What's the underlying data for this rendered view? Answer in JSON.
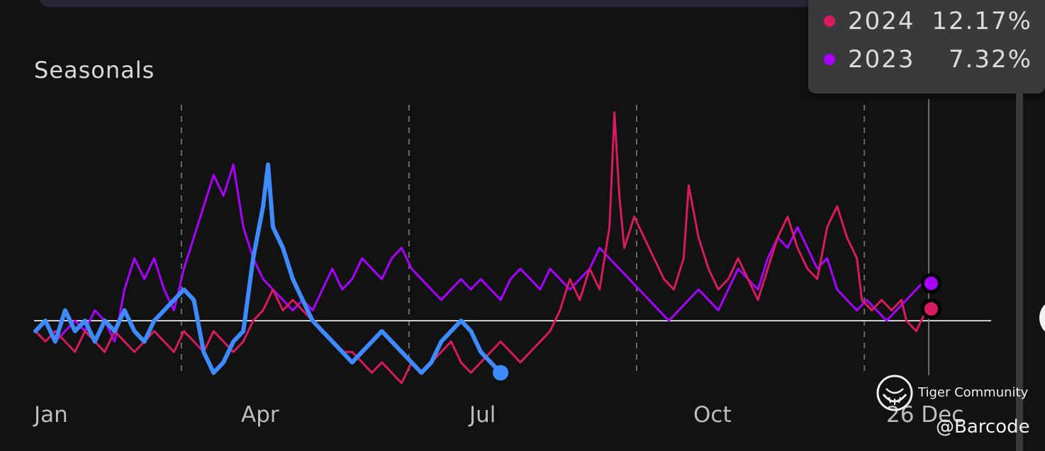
{
  "chart_data": {
    "type": "line",
    "title": "Seasonals",
    "x_axis_labels": [
      "Jan",
      "Apr",
      "Jul",
      "Oct",
      "26 Dec"
    ],
    "baseline": 0,
    "series": [
      {
        "name": "2024",
        "color": "#d81b60",
        "value_label": "12.17%",
        "points": [
          [
            0,
            -1
          ],
          [
            4,
            -2
          ],
          [
            8,
            -1
          ],
          [
            12,
            -2
          ],
          [
            16,
            -3
          ],
          [
            20,
            -1
          ],
          [
            24,
            -2
          ],
          [
            28,
            -3
          ],
          [
            32,
            -1
          ],
          [
            36,
            -2
          ],
          [
            40,
            -3
          ],
          [
            44,
            -2
          ],
          [
            48,
            -1
          ],
          [
            52,
            -2
          ],
          [
            56,
            -3
          ],
          [
            60,
            -1
          ],
          [
            64,
            -2
          ],
          [
            68,
            -3
          ],
          [
            72,
            -1
          ],
          [
            76,
            -2
          ],
          [
            80,
            -3
          ],
          [
            84,
            -2
          ],
          [
            88,
            0
          ],
          [
            92,
            1
          ],
          [
            96,
            3
          ],
          [
            100,
            1
          ],
          [
            104,
            2
          ],
          [
            108,
            1
          ],
          [
            112,
            0
          ],
          [
            116,
            -1
          ],
          [
            120,
            -2
          ],
          [
            124,
            -3
          ],
          [
            128,
            -3
          ],
          [
            132,
            -4
          ],
          [
            136,
            -5
          ],
          [
            140,
            -4
          ],
          [
            144,
            -5
          ],
          [
            148,
            -6
          ],
          [
            152,
            -4
          ],
          [
            156,
            -5
          ],
          [
            160,
            -4
          ],
          [
            164,
            -3
          ],
          [
            168,
            -2
          ],
          [
            172,
            -4
          ],
          [
            176,
            -5
          ],
          [
            180,
            -4
          ],
          [
            184,
            -3
          ],
          [
            188,
            -2
          ],
          [
            192,
            -3
          ],
          [
            196,
            -4
          ],
          [
            200,
            -3
          ],
          [
            204,
            -2
          ],
          [
            208,
            -1
          ],
          [
            212,
            1
          ],
          [
            216,
            4
          ],
          [
            220,
            2
          ],
          [
            224,
            5
          ],
          [
            228,
            3
          ],
          [
            232,
            9
          ],
          [
            234,
            20
          ],
          [
            236,
            12
          ],
          [
            238,
            7
          ],
          [
            242,
            10
          ],
          [
            246,
            8
          ],
          [
            250,
            6
          ],
          [
            254,
            4
          ],
          [
            258,
            3
          ],
          [
            262,
            6
          ],
          [
            264,
            13
          ],
          [
            268,
            8
          ],
          [
            272,
            5
          ],
          [
            276,
            3
          ],
          [
            280,
            4
          ],
          [
            284,
            6
          ],
          [
            288,
            4
          ],
          [
            292,
            2
          ],
          [
            296,
            5
          ],
          [
            300,
            8
          ],
          [
            304,
            10
          ],
          [
            308,
            7
          ],
          [
            312,
            5
          ],
          [
            316,
            4
          ],
          [
            320,
            9
          ],
          [
            324,
            11
          ],
          [
            328,
            8
          ],
          [
            332,
            6
          ],
          [
            334,
            2
          ],
          [
            338,
            1
          ],
          [
            342,
            2
          ],
          [
            346,
            1
          ],
          [
            350,
            2
          ],
          [
            352,
            0
          ],
          [
            356,
            -1
          ],
          [
            360,
            1
          ],
          [
            362,
            1
          ]
        ]
      },
      {
        "name": "2023",
        "color": "#aa00ff",
        "value_label": "7.32%",
        "points": [
          [
            0,
            -1
          ],
          [
            4,
            0
          ],
          [
            8,
            -2
          ],
          [
            12,
            -1
          ],
          [
            16,
            0
          ],
          [
            20,
            -1
          ],
          [
            24,
            1
          ],
          [
            28,
            0
          ],
          [
            32,
            -2
          ],
          [
            36,
            3
          ],
          [
            40,
            6
          ],
          [
            44,
            4
          ],
          [
            48,
            6
          ],
          [
            52,
            3
          ],
          [
            56,
            1
          ],
          [
            60,
            5
          ],
          [
            64,
            8
          ],
          [
            68,
            11
          ],
          [
            72,
            14
          ],
          [
            76,
            12
          ],
          [
            80,
            15
          ],
          [
            84,
            9
          ],
          [
            88,
            6
          ],
          [
            92,
            4
          ],
          [
            96,
            3
          ],
          [
            100,
            2
          ],
          [
            104,
            1
          ],
          [
            108,
            2
          ],
          [
            112,
            1
          ],
          [
            116,
            3
          ],
          [
            120,
            5
          ],
          [
            124,
            3
          ],
          [
            128,
            4
          ],
          [
            132,
            6
          ],
          [
            136,
            5
          ],
          [
            140,
            4
          ],
          [
            144,
            6
          ],
          [
            148,
            7
          ],
          [
            152,
            5
          ],
          [
            156,
            4
          ],
          [
            160,
            3
          ],
          [
            164,
            2
          ],
          [
            168,
            3
          ],
          [
            172,
            4
          ],
          [
            176,
            3
          ],
          [
            180,
            4
          ],
          [
            184,
            3
          ],
          [
            188,
            2
          ],
          [
            192,
            4
          ],
          [
            196,
            5
          ],
          [
            200,
            4
          ],
          [
            204,
            3
          ],
          [
            208,
            5
          ],
          [
            212,
            4
          ],
          [
            216,
            3
          ],
          [
            220,
            4
          ],
          [
            224,
            5
          ],
          [
            228,
            7
          ],
          [
            232,
            6
          ],
          [
            236,
            5
          ],
          [
            240,
            4
          ],
          [
            244,
            3
          ],
          [
            248,
            2
          ],
          [
            252,
            1
          ],
          [
            256,
            0
          ],
          [
            260,
            1
          ],
          [
            264,
            2
          ],
          [
            268,
            3
          ],
          [
            272,
            2
          ],
          [
            276,
            1
          ],
          [
            280,
            3
          ],
          [
            284,
            5
          ],
          [
            288,
            4
          ],
          [
            292,
            3
          ],
          [
            296,
            6
          ],
          [
            300,
            8
          ],
          [
            304,
            7
          ],
          [
            308,
            9
          ],
          [
            312,
            7
          ],
          [
            316,
            5
          ],
          [
            320,
            6
          ],
          [
            324,
            3
          ],
          [
            328,
            2
          ],
          [
            332,
            1
          ],
          [
            336,
            2
          ],
          [
            340,
            1
          ],
          [
            344,
            0
          ],
          [
            348,
            1
          ],
          [
            352,
            2
          ],
          [
            356,
            3
          ],
          [
            360,
            4
          ],
          [
            362,
            4
          ]
        ]
      },
      {
        "name": "",
        "color": "#3d8bff",
        "points": [
          [
            0,
            -1
          ],
          [
            4,
            0
          ],
          [
            8,
            -2
          ],
          [
            12,
            1
          ],
          [
            16,
            -1
          ],
          [
            20,
            0
          ],
          [
            24,
            -2
          ],
          [
            28,
            0
          ],
          [
            32,
            -1
          ],
          [
            36,
            1
          ],
          [
            40,
            -1
          ],
          [
            44,
            -2
          ],
          [
            48,
            0
          ],
          [
            52,
            1
          ],
          [
            56,
            2
          ],
          [
            60,
            3
          ],
          [
            64,
            2
          ],
          [
            68,
            -3
          ],
          [
            72,
            -5
          ],
          [
            76,
            -4
          ],
          [
            80,
            -2
          ],
          [
            84,
            -1
          ],
          [
            88,
            6
          ],
          [
            92,
            11
          ],
          [
            94,
            15
          ],
          [
            96,
            9
          ],
          [
            100,
            7
          ],
          [
            104,
            4
          ],
          [
            108,
            2
          ],
          [
            112,
            0
          ],
          [
            116,
            -1
          ],
          [
            120,
            -2
          ],
          [
            124,
            -3
          ],
          [
            128,
            -4
          ],
          [
            132,
            -3
          ],
          [
            136,
            -2
          ],
          [
            140,
            -1
          ],
          [
            144,
            -2
          ],
          [
            148,
            -3
          ],
          [
            152,
            -4
          ],
          [
            156,
            -5
          ],
          [
            160,
            -4
          ],
          [
            164,
            -2
          ],
          [
            168,
            -1
          ],
          [
            172,
            0
          ],
          [
            176,
            -1
          ],
          [
            180,
            -3
          ],
          [
            184,
            -4
          ],
          [
            188,
            -5
          ]
        ]
      }
    ]
  },
  "tooltip": {
    "rows": [
      {
        "year": "2024",
        "value": "12.17%",
        "color": "#d81b60"
      },
      {
        "year": "2023",
        "value": "7.32%",
        "color": "#aa00ff"
      }
    ]
  },
  "watermark": {
    "brand": "Tiger Community",
    "handle": "@Barcode"
  }
}
